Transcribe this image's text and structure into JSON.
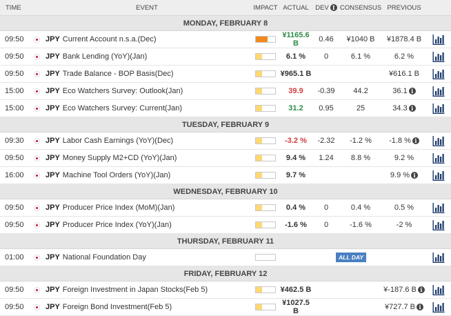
{
  "headers": {
    "time": "TIME",
    "event": "EVENT",
    "impact": "IMPACT",
    "actual": "ACTUAL",
    "dev": "DEV",
    "consensus": "CONSENSUS",
    "previous": "PREVIOUS"
  },
  "colors": {
    "impact_high": "#f08a1c",
    "impact_low": "#ffd873",
    "positive": "#2e8b46",
    "negative": "#d23c3c",
    "allday_badge": "#4a7fc1"
  },
  "days": [
    {
      "label": "MONDAY, FEBRUARY 8",
      "events": [
        {
          "time": "09:50",
          "currency": "JPY",
          "name": "Current Account n.s.a.(Dec)",
          "impact": 0.6,
          "impact_level": "high",
          "actual": "¥1165.6 B",
          "actual_tone": "pos",
          "dev": "0.46",
          "consensus": "¥1040 B",
          "previous": "¥1878.4 B",
          "previous_info": false
        },
        {
          "time": "09:50",
          "currency": "JPY",
          "name": "Bank Lending (YoY)(Jan)",
          "impact": 0.33,
          "impact_level": "low",
          "actual": "6.1 %",
          "actual_tone": "",
          "dev": "0",
          "consensus": "6.1 %",
          "previous": "6.2 %",
          "previous_info": false
        },
        {
          "time": "09:50",
          "currency": "JPY",
          "name": "Trade Balance - BOP Basis(Dec)",
          "impact": 0.33,
          "impact_level": "low",
          "actual": "¥965.1 B",
          "actual_tone": "",
          "dev": "",
          "consensus": "",
          "previous": "¥616.1 B",
          "previous_info": false
        },
        {
          "time": "15:00",
          "currency": "JPY",
          "name": "Eco Watchers Survey: Outlook(Jan)",
          "impact": 0.33,
          "impact_level": "low",
          "actual": "39.9",
          "actual_tone": "neg",
          "dev": "-0.39",
          "consensus": "44.2",
          "previous": "36.1",
          "previous_info": true
        },
        {
          "time": "15:00",
          "currency": "JPY",
          "name": "Eco Watchers Survey: Current(Jan)",
          "impact": 0.33,
          "impact_level": "low",
          "actual": "31.2",
          "actual_tone": "pos",
          "dev": "0.95",
          "consensus": "25",
          "previous": "34.3",
          "previous_info": true
        }
      ]
    },
    {
      "label": "TUESDAY, FEBRUARY 9",
      "events": [
        {
          "time": "09:30",
          "currency": "JPY",
          "name": "Labor Cash Earnings (YoY)(Dec)",
          "impact": 0.33,
          "impact_level": "low",
          "actual": "-3.2 %",
          "actual_tone": "neg",
          "dev": "-2.32",
          "consensus": "-1.2 %",
          "previous": "-1.8 %",
          "previous_info": true
        },
        {
          "time": "09:50",
          "currency": "JPY",
          "name": "Money Supply M2+CD (YoY)(Jan)",
          "impact": 0.33,
          "impact_level": "low",
          "actual": "9.4 %",
          "actual_tone": "",
          "dev": "1.24",
          "consensus": "8.8 %",
          "previous": "9.2 %",
          "previous_info": false
        },
        {
          "time": "16:00",
          "currency": "JPY",
          "name": "Machine Tool Orders (YoY)(Jan)",
          "impact": 0.33,
          "impact_level": "low",
          "actual": "9.7 %",
          "actual_tone": "",
          "dev": "",
          "consensus": "",
          "previous": "9.9 %",
          "previous_info": true
        }
      ]
    },
    {
      "label": "WEDNESDAY, FEBRUARY 10",
      "events": [
        {
          "time": "09:50",
          "currency": "JPY",
          "name": "Producer Price Index (MoM)(Jan)",
          "impact": 0.33,
          "impact_level": "low",
          "actual": "0.4 %",
          "actual_tone": "",
          "dev": "0",
          "consensus": "0.4 %",
          "previous": "0.5 %",
          "previous_info": false
        },
        {
          "time": "09:50",
          "currency": "JPY",
          "name": "Producer Price Index (YoY)(Jan)",
          "impact": 0.33,
          "impact_level": "low",
          "actual": "-1.6 %",
          "actual_tone": "",
          "dev": "0",
          "consensus": "-1.6 %",
          "previous": "-2 %",
          "previous_info": false
        }
      ]
    },
    {
      "label": "THURSDAY, FEBRUARY 11",
      "events": [
        {
          "time": "01:00",
          "currency": "JPY",
          "name": "National Foundation Day",
          "impact": 0,
          "impact_level": "none",
          "all_day": "ALL DAY",
          "actual": "",
          "actual_tone": "",
          "dev": "",
          "consensus": "",
          "previous": "",
          "previous_info": false
        }
      ]
    },
    {
      "label": "FRIDAY, FEBRUARY 12",
      "events": [
        {
          "time": "09:50",
          "currency": "JPY",
          "name": "Foreign Investment in Japan Stocks(Feb 5)",
          "impact": 0.33,
          "impact_level": "low",
          "actual": "¥462.5 B",
          "actual_tone": "",
          "dev": "",
          "consensus": "",
          "previous": "¥-187.6 B",
          "previous_info": true
        },
        {
          "time": "09:50",
          "currency": "JPY",
          "name": "Foreign Bond Investment(Feb 5)",
          "impact": 0.33,
          "impact_level": "low",
          "actual": "¥1027.5 B",
          "actual_tone": "",
          "dev": "",
          "consensus": "",
          "previous": "¥727.7 B",
          "previous_info": true
        }
      ]
    }
  ]
}
